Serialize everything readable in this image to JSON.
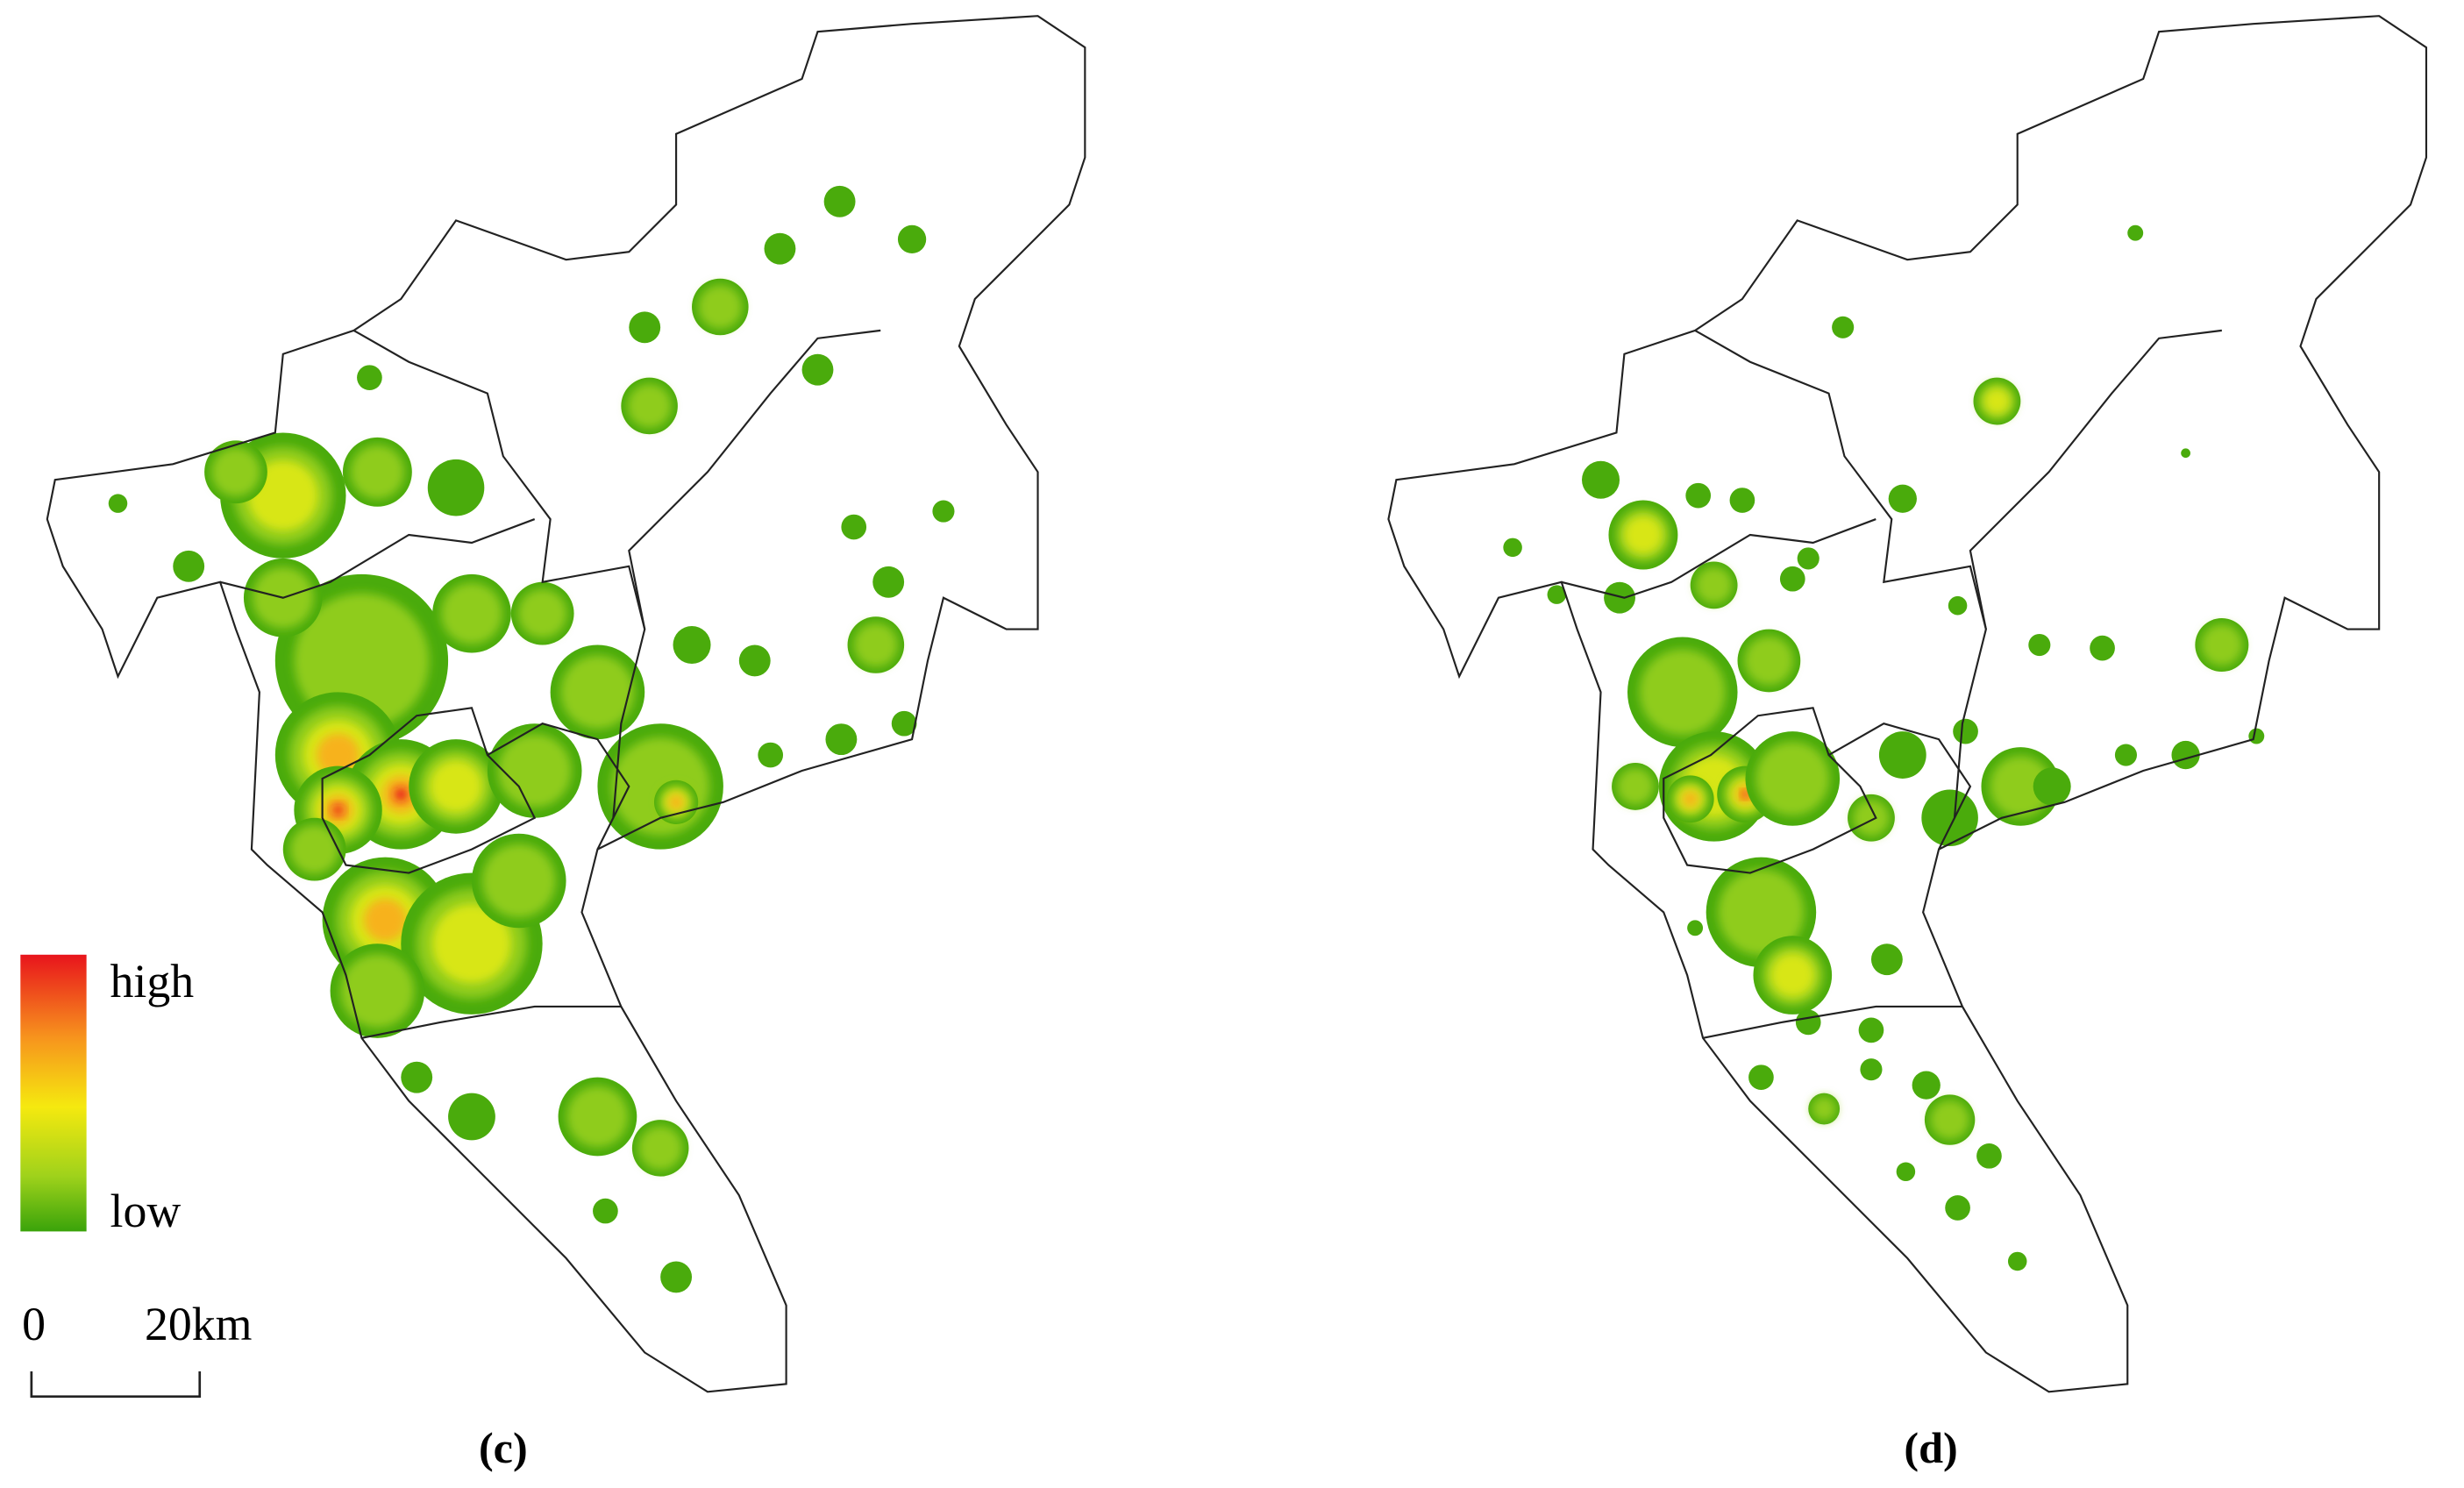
{
  "legend": {
    "high": "high",
    "low": "low"
  },
  "scale_bar": {
    "start": "0",
    "end": "20km"
  },
  "panels": [
    {
      "caption": "(c)"
    },
    {
      "caption": "(d)"
    }
  ]
}
